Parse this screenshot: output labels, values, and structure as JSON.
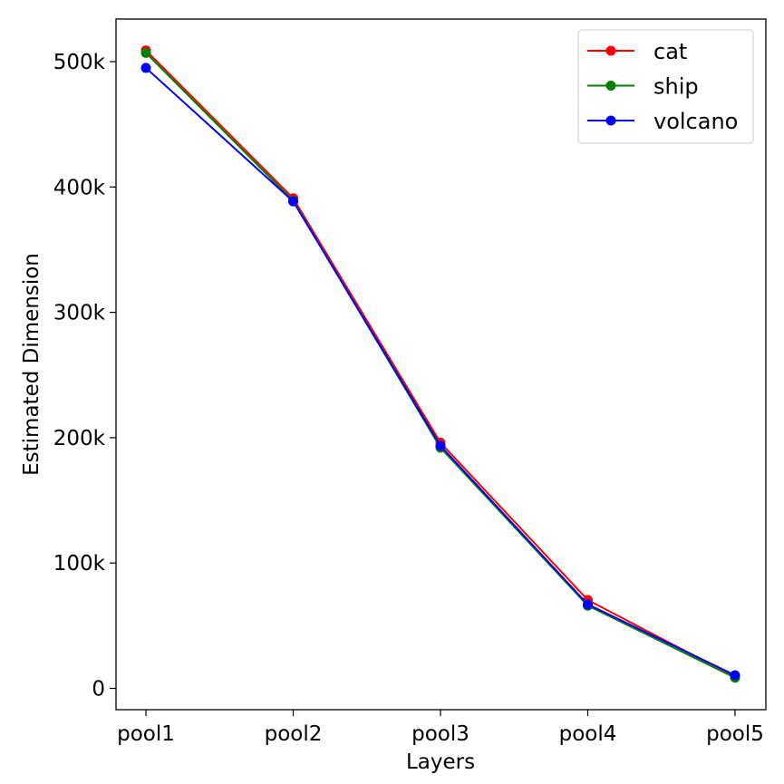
{
  "chart_data": {
    "type": "line",
    "title": "",
    "xlabel": "Layers",
    "ylabel": "Estimated Dimension",
    "categories": [
      "pool1",
      "pool2",
      "pool3",
      "pool4",
      "pool5"
    ],
    "y_ticks": [
      0,
      100000,
      200000,
      300000,
      400000,
      500000
    ],
    "y_tick_labels": [
      "0",
      "100k",
      "200k",
      "300k",
      "400k",
      "500k"
    ],
    "ylim": [
      -17000,
      534000
    ],
    "grid": false,
    "legend_position": "top-right",
    "series": [
      {
        "name": "cat",
        "color": "#ff0000",
        "values": [
          509000,
          391000,
          196000,
          70500,
          9000
        ]
      },
      {
        "name": "ship",
        "color": "#008000",
        "values": [
          507000,
          389000,
          192000,
          66000,
          8500
        ]
      },
      {
        "name": "volcano",
        "color": "#0000ff",
        "values": [
          495000,
          388500,
          193500,
          67000,
          10500
        ]
      }
    ]
  }
}
